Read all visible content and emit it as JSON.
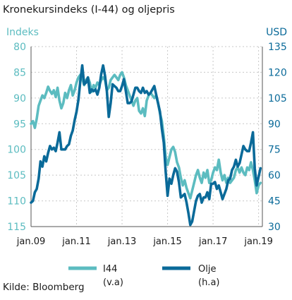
{
  "title": "Kronekursindeks (I-44) og oljepris",
  "source": "Kilde: Bloomberg",
  "colors": {
    "i44": "#5cbcc0",
    "olje": "#0a6a99",
    "grid": "#c8c8c8",
    "frame": "#555555"
  },
  "chart_data": {
    "type": "line",
    "left_axis": {
      "title": "Indeks",
      "min": 80,
      "max": 115,
      "inverted": true,
      "ticks": [
        "80",
        "85",
        "90",
        "95",
        "100",
        "105",
        "110",
        "115"
      ]
    },
    "right_axis": {
      "title": "USD",
      "min": 30,
      "max": 135,
      "ticks": [
        "135",
        "120",
        "105",
        "90",
        "75",
        "60",
        "45",
        "30"
      ]
    },
    "x_axis": {
      "range": [
        "2009-01",
        "2019-03"
      ],
      "ticks": [
        "jan.09",
        "jan.11",
        "jan.13",
        "jan.15",
        "jan.17",
        "jan.19"
      ]
    },
    "grid": true,
    "legend": {
      "placement": "bottom"
    },
    "series": [
      {
        "name": "I44",
        "sub": "(v.a)",
        "axis": "left",
        "color": "#5cbcc0",
        "values": [
          [
            "2009-01",
            95.0
          ],
          [
            "2009-02",
            94.5
          ],
          [
            "2009-03",
            95.8
          ],
          [
            "2009-04",
            94.0
          ],
          [
            "2009-05",
            91.5
          ],
          [
            "2009-06",
            90.5
          ],
          [
            "2009-07",
            89.5
          ],
          [
            "2009-08",
            90.0
          ],
          [
            "2009-09",
            89.0
          ],
          [
            "2009-10",
            87.8
          ],
          [
            "2009-11",
            88.6
          ],
          [
            "2009-12",
            89.2
          ],
          [
            "2010-01",
            88.5
          ],
          [
            "2010-02",
            89.8
          ],
          [
            "2010-03",
            88.0
          ],
          [
            "2010-04",
            90.5
          ],
          [
            "2010-05",
            92.0
          ],
          [
            "2010-06",
            91.0
          ],
          [
            "2010-07",
            89.0
          ],
          [
            "2010-08",
            90.0
          ],
          [
            "2010-09",
            88.5
          ],
          [
            "2010-10",
            87.5
          ],
          [
            "2010-11",
            89.5
          ],
          [
            "2010-12",
            88.5
          ],
          [
            "2011-01",
            87.0
          ],
          [
            "2011-02",
            86.0
          ],
          [
            "2011-03",
            85.5
          ],
          [
            "2011-04",
            86.2
          ],
          [
            "2011-05",
            87.5
          ],
          [
            "2011-06",
            86.5
          ],
          [
            "2011-07",
            86.0
          ],
          [
            "2011-08",
            87.0
          ],
          [
            "2011-09",
            88.8
          ],
          [
            "2011-10",
            87.5
          ],
          [
            "2011-11",
            88.0
          ],
          [
            "2011-12",
            87.0
          ],
          [
            "2012-01",
            87.5
          ],
          [
            "2012-02",
            86.5
          ],
          [
            "2012-03",
            86.0
          ],
          [
            "2012-04",
            86.5
          ],
          [
            "2012-05",
            88.5
          ],
          [
            "2012-06",
            88.0
          ],
          [
            "2012-07",
            86.5
          ],
          [
            "2012-08",
            86.0
          ],
          [
            "2012-09",
            85.5
          ],
          [
            "2012-10",
            86.0
          ],
          [
            "2012-11",
            86.5
          ],
          [
            "2012-12",
            85.5
          ],
          [
            "2013-01",
            85.0
          ],
          [
            "2013-02",
            86.0
          ],
          [
            "2013-03",
            87.5
          ],
          [
            "2013-04",
            88.5
          ],
          [
            "2013-05",
            89.5
          ],
          [
            "2013-06",
            90.5
          ],
          [
            "2013-07",
            91.5
          ],
          [
            "2013-08",
            90.5
          ],
          [
            "2013-09",
            90.0
          ],
          [
            "2013-10",
            92.5
          ],
          [
            "2013-11",
            93.0
          ],
          [
            "2013-12",
            92.0
          ],
          [
            "2014-01",
            93.5
          ],
          [
            "2014-02",
            90.5
          ],
          [
            "2014-03",
            89.5
          ],
          [
            "2014-04",
            89.0
          ],
          [
            "2014-05",
            89.5
          ],
          [
            "2014-06",
            90.0
          ],
          [
            "2014-07",
            89.5
          ],
          [
            "2014-08",
            91.0
          ],
          [
            "2014-09",
            93.0
          ],
          [
            "2014-10",
            94.5
          ],
          [
            "2014-11",
            97.5
          ],
          [
            "2014-12",
            101.5
          ],
          [
            "2015-01",
            103.0
          ],
          [
            "2015-02",
            101.5
          ],
          [
            "2015-03",
            100.0
          ],
          [
            "2015-04",
            99.5
          ],
          [
            "2015-05",
            100.5
          ],
          [
            "2015-06",
            102.5
          ],
          [
            "2015-07",
            103.5
          ],
          [
            "2015-08",
            105.5
          ],
          [
            "2015-09",
            107.0
          ],
          [
            "2015-10",
            106.0
          ],
          [
            "2015-11",
            107.5
          ],
          [
            "2015-12",
            108.5
          ],
          [
            "2016-01",
            109.5
          ],
          [
            "2016-02",
            108.0
          ],
          [
            "2016-03",
            106.5
          ],
          [
            "2016-04",
            105.0
          ],
          [
            "2016-05",
            104.0
          ],
          [
            "2016-06",
            105.5
          ],
          [
            "2016-07",
            106.5
          ],
          [
            "2016-08",
            104.5
          ],
          [
            "2016-09",
            105.5
          ],
          [
            "2016-10",
            104.0
          ],
          [
            "2016-11",
            106.5
          ],
          [
            "2016-12",
            106.0
          ],
          [
            "2017-01",
            104.5
          ],
          [
            "2017-02",
            103.5
          ],
          [
            "2017-03",
            104.0
          ],
          [
            "2017-04",
            102.0
          ],
          [
            "2017-05",
            104.5
          ],
          [
            "2017-06",
            106.0
          ],
          [
            "2017-07",
            105.0
          ],
          [
            "2017-08",
            106.5
          ],
          [
            "2017-09",
            105.5
          ],
          [
            "2017-10",
            106.5
          ],
          [
            "2017-11",
            106.0
          ],
          [
            "2017-12",
            105.5
          ],
          [
            "2018-01",
            104.0
          ],
          [
            "2018-02",
            103.5
          ],
          [
            "2018-03",
            104.5
          ],
          [
            "2018-04",
            103.5
          ],
          [
            "2018-05",
            104.5
          ],
          [
            "2018-06",
            105.0
          ],
          [
            "2018-07",
            103.5
          ],
          [
            "2018-08",
            104.0
          ],
          [
            "2018-09",
            102.5
          ],
          [
            "2018-10",
            104.0
          ],
          [
            "2018-11",
            106.0
          ],
          [
            "2018-12",
            108.5
          ],
          [
            "2019-01",
            107.0
          ],
          [
            "2019-02",
            106.5
          ]
        ]
      },
      {
        "name": "Olje",
        "sub": "(h.a)",
        "axis": "right",
        "color": "#0a6a99",
        "values": [
          [
            "2009-01",
            44
          ],
          [
            "2009-02",
            45
          ],
          [
            "2009-03",
            50
          ],
          [
            "2009-04",
            52
          ],
          [
            "2009-05",
            58
          ],
          [
            "2009-06",
            68
          ],
          [
            "2009-07",
            65
          ],
          [
            "2009-08",
            71
          ],
          [
            "2009-09",
            68
          ],
          [
            "2009-10",
            73
          ],
          [
            "2009-11",
            77
          ],
          [
            "2009-12",
            75
          ],
          [
            "2010-01",
            76
          ],
          [
            "2010-02",
            74
          ],
          [
            "2010-03",
            79
          ],
          [
            "2010-04",
            85
          ],
          [
            "2010-05",
            75
          ],
          [
            "2010-06",
            75
          ],
          [
            "2010-07",
            75
          ],
          [
            "2010-08",
            77
          ],
          [
            "2010-09",
            78
          ],
          [
            "2010-10",
            83
          ],
          [
            "2010-11",
            86
          ],
          [
            "2010-12",
            92
          ],
          [
            "2011-01",
            97
          ],
          [
            "2011-02",
            104
          ],
          [
            "2011-03",
            115
          ],
          [
            "2011-04",
            124
          ],
          [
            "2011-05",
            113
          ],
          [
            "2011-06",
            114
          ],
          [
            "2011-07",
            117
          ],
          [
            "2011-08",
            108
          ],
          [
            "2011-09",
            110
          ],
          [
            "2011-10",
            109
          ],
          [
            "2011-11",
            110
          ],
          [
            "2011-12",
            107
          ],
          [
            "2012-01",
            111
          ],
          [
            "2012-02",
            119
          ],
          [
            "2012-03",
            124
          ],
          [
            "2012-04",
            118
          ],
          [
            "2012-05",
            109
          ],
          [
            "2012-06",
            94
          ],
          [
            "2012-07",
            102
          ],
          [
            "2012-08",
            113
          ],
          [
            "2012-09",
            112
          ],
          [
            "2012-10",
            111
          ],
          [
            "2012-11",
            109
          ],
          [
            "2012-12",
            109
          ],
          [
            "2013-01",
            112
          ],
          [
            "2013-02",
            116
          ],
          [
            "2013-03",
            109
          ],
          [
            "2013-04",
            102
          ],
          [
            "2013-05",
            102
          ],
          [
            "2013-06",
            103
          ],
          [
            "2013-07",
            107
          ],
          [
            "2013-08",
            111
          ],
          [
            "2013-09",
            111
          ],
          [
            "2013-10",
            109
          ],
          [
            "2013-11",
            108
          ],
          [
            "2013-12",
            111
          ],
          [
            "2014-01",
            108
          ],
          [
            "2014-02",
            109
          ],
          [
            "2014-03",
            107
          ],
          [
            "2014-04",
            108
          ],
          [
            "2014-05",
            110
          ],
          [
            "2014-06",
            112
          ],
          [
            "2014-07",
            107
          ],
          [
            "2014-08",
            102
          ],
          [
            "2014-09",
            97
          ],
          [
            "2014-10",
            87
          ],
          [
            "2014-11",
            79
          ],
          [
            "2014-12",
            62
          ],
          [
            "2015-01",
            48
          ],
          [
            "2015-02",
            58
          ],
          [
            "2015-03",
            55
          ],
          [
            "2015-04",
            60
          ],
          [
            "2015-05",
            64
          ],
          [
            "2015-06",
            62
          ],
          [
            "2015-07",
            56
          ],
          [
            "2015-08",
            47
          ],
          [
            "2015-09",
            48
          ],
          [
            "2015-10",
            49
          ],
          [
            "2015-11",
            44
          ],
          [
            "2015-12",
            38
          ],
          [
            "2016-01",
            31
          ],
          [
            "2016-02",
            33
          ],
          [
            "2016-03",
            39
          ],
          [
            "2016-04",
            45
          ],
          [
            "2016-05",
            48
          ],
          [
            "2016-06",
            49
          ],
          [
            "2016-07",
            44
          ],
          [
            "2016-08",
            47
          ],
          [
            "2016-09",
            47
          ],
          [
            "2016-10",
            50
          ],
          [
            "2016-11",
            46
          ],
          [
            "2016-12",
            55
          ],
          [
            "2017-01",
            55
          ],
          [
            "2017-02",
            56
          ],
          [
            "2017-03",
            52
          ],
          [
            "2017-04",
            54
          ],
          [
            "2017-05",
            50
          ],
          [
            "2017-06",
            46
          ],
          [
            "2017-07",
            49
          ],
          [
            "2017-08",
            52
          ],
          [
            "2017-09",
            57
          ],
          [
            "2017-10",
            58
          ],
          [
            "2017-11",
            63
          ],
          [
            "2017-12",
            65
          ],
          [
            "2018-01",
            69
          ],
          [
            "2018-02",
            65
          ],
          [
            "2018-03",
            67
          ],
          [
            "2018-04",
            72
          ],
          [
            "2018-05",
            77
          ],
          [
            "2018-06",
            75
          ],
          [
            "2018-07",
            74
          ],
          [
            "2018-08",
            74
          ],
          [
            "2018-09",
            79
          ],
          [
            "2018-10",
            85
          ],
          [
            "2018-11",
            64
          ],
          [
            "2018-12",
            54
          ],
          [
            "2019-01",
            59
          ],
          [
            "2019-02",
            64
          ]
        ]
      }
    ]
  }
}
